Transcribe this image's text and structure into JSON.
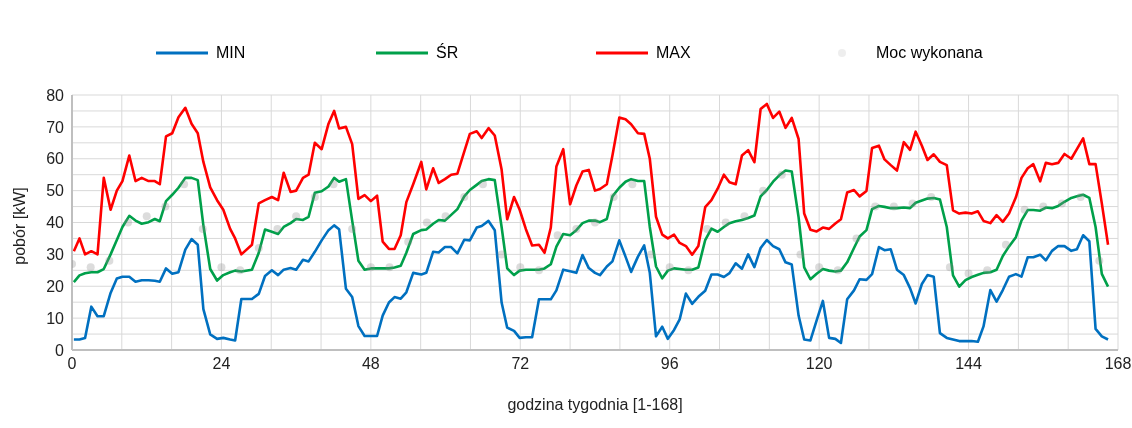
{
  "chart_data": {
    "type": "line",
    "xlabel": "godzina tygodnia [1-168]",
    "ylabel": "pobór [kW]",
    "legend": "top",
    "grid": true,
    "x": [
      0.3,
      1.2,
      2.1,
      3.1,
      4.1,
      5.1,
      6.2,
      7.2,
      8.1,
      9.2,
      10.2,
      11.2,
      12.3,
      13.3,
      14.1,
      15.1,
      16.1,
      17.1,
      18.2,
      19.2,
      20.2,
      21.1,
      22.2,
      23.3,
      24.3,
      25.4,
      26.2,
      27.2,
      28.9,
      30,
      31,
      32.1,
      33.1,
      34,
      35.1,
      36,
      37.1,
      38,
      39,
      40.1,
      41.2,
      42.1,
      42.9,
      44,
      45,
      46,
      47,
      48,
      49,
      49.9,
      50.9,
      51.8,
      52.8,
      53.7,
      54.8,
      56.1,
      56.9,
      58,
      58.9,
      59.9,
      60.9,
      61.9,
      63,
      63.9,
      65,
      65.8,
      66.9,
      67.9,
      69,
      69.9,
      71,
      71.9,
      72.9,
      73.9,
      75,
      75.9,
      76.9,
      77.8,
      78.9,
      80,
      81,
      82,
      83,
      84,
      84.8,
      85.9,
      86.8,
      87.9,
      88.9,
      89.8,
      90.9,
      91.9,
      92.8,
      93.8,
      94.8,
      95.7,
      96.7,
      97.6,
      98.6,
      99.6,
      100.6,
      101.7,
      102.7,
      103.7,
      104.7,
      105.6,
      106.6,
      107.6,
      108.6,
      109.6,
      110.6,
      111.6,
      112.6,
      113.6,
      114.6,
      115.6,
      116.7,
      117.6,
      118.6,
      119.6,
      120.6,
      121.6,
      122.6,
      123.5,
      124.5,
      125.6,
      126.5,
      127.6,
      128.5,
      129.6,
      130.5,
      131.5,
      132.5,
      133.6,
      134.6,
      135.5,
      136.5,
      137.4,
      138.4,
      139.4,
      140.5,
      141.5,
      142.5,
      143.5,
      144.5,
      145.5,
      146.4,
      147.5,
      148.5,
      149.5,
      150.5,
      151.6,
      152.5,
      153.5,
      154.4,
      155.5,
      156.4,
      157.4,
      158.4,
      159.4,
      160.5,
      161.4,
      162.4,
      163.4,
      164.4,
      165.4,
      166.4
    ],
    "series": [
      {
        "name": "MIN",
        "color": "#0070c0",
        "values": [
          3.3,
          3.3,
          3.8,
          13.6,
          10.6,
          10.6,
          17.9,
          22.4,
          23,
          23,
          21.4,
          21.9,
          21.9,
          21.7,
          21.4,
          25.6,
          23.9,
          24.4,
          31.5,
          34.8,
          33,
          12.8,
          4.9,
          3.5,
          3.8,
          3.3,
          3,
          16,
          16,
          17.6,
          23.2,
          25,
          23.5,
          25.2,
          25.7,
          25.2,
          28.3,
          27.8,
          30.8,
          34.4,
          37.6,
          39.1,
          37.9,
          19.2,
          16.6,
          7.5,
          4.4,
          4.4,
          4.4,
          10.8,
          14.9,
          16.6,
          16.1,
          18.1,
          24.2,
          23.7,
          24.2,
          30.8,
          30.6,
          32.3,
          32.3,
          30.3,
          34.6,
          34.4,
          38.4,
          38.9,
          40.5,
          37.6,
          14.9,
          7,
          6,
          3.8,
          4,
          4,
          15.9,
          15.9,
          15.9,
          18.7,
          25.2,
          24.7,
          24.2,
          29.8,
          25.7,
          24.2,
          23.5,
          26.2,
          27.8,
          34.4,
          29.3,
          24.5,
          29.3,
          32.8,
          24.2,
          4.3,
          7.3,
          3.5,
          6.3,
          9.6,
          17.7,
          14.5,
          16.7,
          18.6,
          23.7,
          23.7,
          22.9,
          24.1,
          27.2,
          25.5,
          30,
          26,
          32,
          34.5,
          32.6,
          31.6,
          27.5,
          26.8,
          10.8,
          3.3,
          3,
          9.3,
          15.4,
          3.8,
          3.5,
          2.2,
          15.9,
          18.7,
          22.2,
          22,
          23.8,
          32.3,
          31.3,
          31.6,
          25.2,
          23.5,
          19.4,
          14.6,
          20.7,
          23.5,
          23,
          5.3,
          3.8,
          3.3,
          2.8,
          2.8,
          2.8,
          2.6,
          7.4,
          18.8,
          15.2,
          18.8,
          23,
          23.8,
          23,
          29.1,
          29.1,
          29.9,
          28.1,
          31.1,
          32.6,
          32.6,
          31.1,
          31.6,
          36,
          34.1,
          6.6,
          4.3,
          3.3
        ]
      },
      {
        "name": "ŚR",
        "color": "#00a04a",
        "values": [
          21.3,
          23.4,
          24.1,
          24.4,
          24.4,
          25.4,
          30,
          34.5,
          38.6,
          42.1,
          40.6,
          39.6,
          40.1,
          41.1,
          40.4,
          46.7,
          48.7,
          50.9,
          54,
          54,
          53.3,
          39.1,
          25.4,
          21.8,
          23.5,
          24.4,
          24.9,
          24.6,
          25.2,
          30.5,
          37.8,
          37.1,
          36.4,
          38.6,
          39.8,
          41.1,
          40.8,
          41.8,
          49.3,
          49.8,
          51.3,
          54,
          52.8,
          53.6,
          40.6,
          28,
          25.2,
          25.6,
          25.6,
          25.6,
          25.6,
          25.9,
          26.4,
          30.5,
          36.4,
          37.6,
          37.8,
          39.6,
          40.8,
          40.6,
          42.4,
          44.2,
          48.2,
          50.2,
          51.8,
          53,
          53.6,
          53.3,
          38.6,
          25.6,
          23.5,
          24.9,
          25.2,
          25.2,
          25.2,
          25.6,
          26.9,
          32.4,
          36.4,
          36,
          37.6,
          39.8,
          40.6,
          40.6,
          40.1,
          41.1,
          48.2,
          50.9,
          52.8,
          53.6,
          53,
          53,
          38.6,
          26.2,
          22.5,
          24.9,
          25.6,
          25.4,
          25.2,
          25.2,
          25.9,
          34.5,
          38.1,
          37.1,
          38.6,
          39.8,
          40.4,
          40.8,
          41.4,
          42.2,
          48.2,
          50.2,
          52.8,
          54.8,
          56.3,
          56,
          41.6,
          25.9,
          22.2,
          23.9,
          25.4,
          24.9,
          24.6,
          24.9,
          27.5,
          32,
          35.6,
          37.6,
          44.2,
          45.2,
          44.9,
          44.5,
          44.5,
          44.7,
          44.5,
          46.2,
          46.9,
          47.5,
          47.7,
          47.2,
          38.6,
          23.4,
          19.9,
          21.9,
          22.9,
          23.6,
          24.2,
          24.4,
          25.2,
          29.5,
          32.5,
          35.4,
          40.6,
          43.9,
          43.9,
          43.7,
          44.7,
          44.5,
          45.2,
          46.5,
          47.7,
          48.2,
          48.7,
          47.7,
          38.6,
          23.9,
          19.9
        ]
      },
      {
        "name": "MAX",
        "color": "#ff0000",
        "values": [
          31,
          35,
          30,
          31,
          30,
          54,
          44,
          50,
          53,
          61,
          53,
          54,
          53,
          53,
          52,
          67,
          68,
          73,
          76,
          71,
          68,
          59,
          51,
          47,
          44,
          38,
          35,
          30,
          33,
          46,
          47,
          48,
          47,
          55.6,
          49.6,
          50,
          54,
          55,
          65,
          63,
          71,
          75,
          69.5,
          70,
          64.6,
          47.4,
          48.6,
          46.7,
          48.4,
          34,
          31.7,
          31.7,
          36,
          46.4,
          52,
          59,
          50.4,
          57,
          52.4,
          53.6,
          55,
          55.3,
          62.2,
          67.8,
          68.6,
          66.5,
          69.6,
          67.3,
          56.6,
          41,
          48,
          44,
          37.9,
          32.8,
          33,
          30.5,
          38.4,
          57.6,
          63,
          45.7,
          51.6,
          56,
          56.5,
          50,
          50.5,
          52,
          61,
          72.9,
          72.4,
          70.8,
          68,
          67.8,
          60,
          41.8,
          36.2,
          35,
          36.2,
          33.6,
          32.6,
          29.9,
          32.6,
          44.8,
          47,
          50.6,
          55,
          52.6,
          52,
          61,
          62.7,
          58.9,
          75.6,
          77.2,
          72.8,
          74.8,
          69.7,
          72.8,
          66.2,
          42.8,
          37.7,
          37.2,
          38.4,
          38,
          39.7,
          41,
          49.4,
          50.2,
          48.2,
          49.9,
          63.4,
          64.1,
          59.8,
          58,
          56.3,
          65.2,
          62.8,
          68.5,
          64.1,
          59.6,
          61.4,
          59,
          58,
          43.8,
          42.8,
          43.1,
          42.8,
          43.5,
          40.5,
          39.8,
          42.3,
          40.2,
          42.8,
          47.9,
          54,
          57,
          58.3,
          52.9,
          58.7,
          58.3,
          58.7,
          61.5,
          60,
          63,
          66.4,
          58.3,
          58.3,
          46,
          33
        ]
      },
      {
        "name": "Moc wykonana",
        "type": "scatter",
        "color": "#8c8c8c",
        "x": [
          0,
          3,
          6,
          9,
          12,
          15,
          18,
          21,
          24,
          27,
          30,
          33,
          36,
          39,
          42,
          45,
          48,
          51,
          54,
          57,
          60,
          63,
          66,
          69,
          72,
          75,
          78,
          81,
          84,
          87,
          90,
          93,
          96,
          99,
          102,
          105,
          108,
          111,
          114,
          117,
          120,
          123,
          126,
          129,
          132,
          135,
          138,
          141,
          144,
          147,
          150,
          153,
          156,
          159,
          162,
          165
        ],
        "values": [
          27,
          26,
          28,
          40,
          42,
          45,
          52,
          38,
          26,
          25,
          32,
          38,
          42,
          48,
          52,
          38,
          26,
          26,
          34,
          40,
          42,
          48,
          52,
          30,
          26,
          25,
          36,
          38,
          40,
          48,
          52,
          30,
          26,
          25,
          38,
          40,
          42,
          50,
          55,
          30,
          26,
          25,
          35,
          45,
          45,
          46,
          48,
          26,
          24,
          25,
          33,
          44,
          45,
          46,
          48,
          28
        ]
      }
    ],
    "xlim": [
      0,
      168
    ],
    "xticks": [
      0,
      {
        "value": 8,
        "label": null
      },
      {
        "value": 16,
        "label": null
      },
      24,
      {
        "value": 32,
        "label": null
      },
      {
        "value": 40,
        "label": null
      },
      48,
      {
        "value": 56,
        "label": null
      },
      {
        "value": 64,
        "label": null
      },
      72,
      {
        "value": 80,
        "label": null
      },
      {
        "value": 88,
        "label": null
      },
      96,
      {
        "value": 104,
        "label": null
      },
      {
        "value": 112,
        "label": null
      },
      120,
      {
        "value": 128,
        "label": null
      },
      {
        "value": 136,
        "label": null
      },
      144,
      {
        "value": 152,
        "label": null
      },
      {
        "value": 160,
        "label": null
      },
      168
    ],
    "ylim": [
      0,
      80
    ],
    "yticks": [
      0,
      {
        "value": 5,
        "label": null
      },
      10,
      {
        "value": 15,
        "label": null
      },
      20,
      {
        "value": 25,
        "label": null
      },
      30,
      {
        "value": 35,
        "label": null
      },
      40,
      {
        "value": 45,
        "label": null
      },
      50,
      {
        "value": 55,
        "label": null
      },
      60,
      {
        "value": 65,
        "label": null
      },
      70,
      {
        "value": 75,
        "label": null
      },
      80
    ]
  }
}
